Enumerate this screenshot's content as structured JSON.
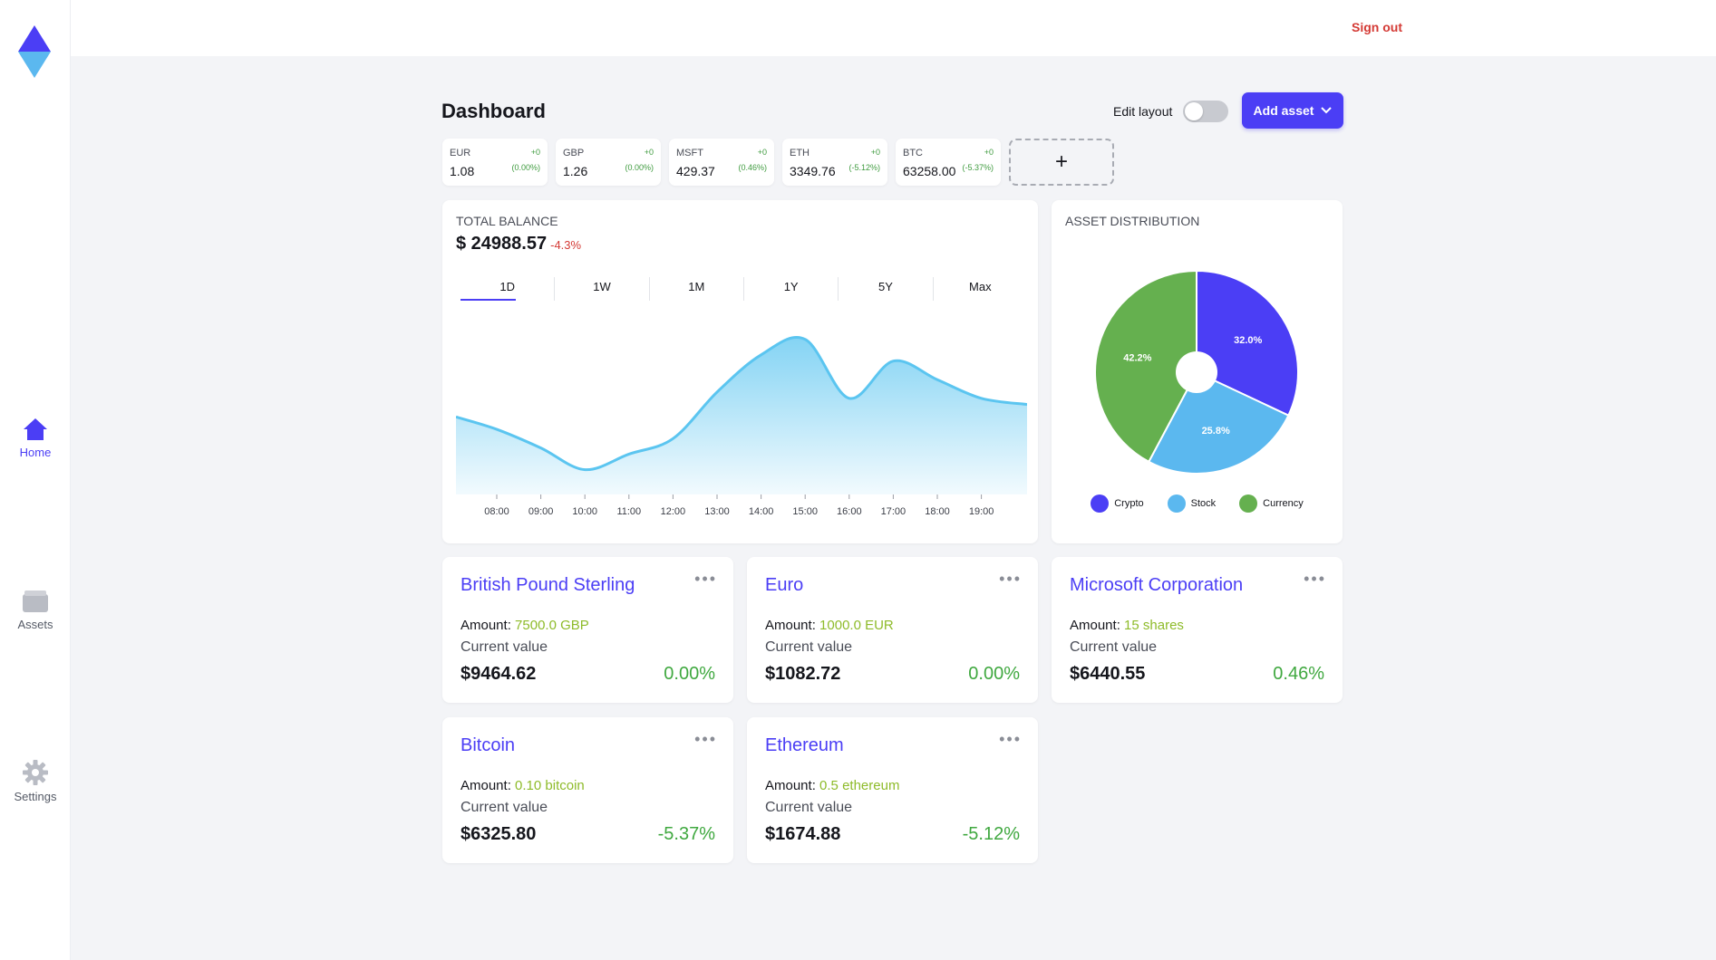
{
  "sidebar": {
    "items": [
      {
        "label": "Home",
        "icon": "home-icon",
        "active": true
      },
      {
        "label": "Assets",
        "icon": "wallet-icon",
        "active": false
      },
      {
        "label": "Settings",
        "icon": "gear-icon",
        "active": false
      }
    ]
  },
  "topbar": {
    "sign_out": "Sign out"
  },
  "header": {
    "title": "Dashboard",
    "edit_layout_label": "Edit layout",
    "edit_layout_on": false,
    "add_asset_label": "Add asset"
  },
  "tickers": [
    {
      "symbol": "EUR",
      "value": "1.08",
      "change": "+0",
      "percent": "(0.00%)"
    },
    {
      "symbol": "GBP",
      "value": "1.26",
      "change": "+0",
      "percent": "(0.00%)"
    },
    {
      "symbol": "MSFT",
      "value": "429.37",
      "change": "+0",
      "percent": "(0.46%)"
    },
    {
      "symbol": "ETH",
      "value": "3349.76",
      "change": "+0",
      "percent": "(-5.12%)"
    },
    {
      "symbol": "BTC",
      "value": "63258.00",
      "change": "+0",
      "percent": "(-5.37%)"
    }
  ],
  "add_ticker_label": "+",
  "balance": {
    "label": "TOTAL BALANCE",
    "amount": "$ 24988.57",
    "change": "-4.3%",
    "ranges": [
      "1D",
      "1W",
      "1M",
      "1Y",
      "5Y",
      "Max"
    ],
    "active_range": "1D"
  },
  "distribution": {
    "label": "ASSET DISTRIBUTION"
  },
  "assets": [
    {
      "name": "British Pound Sterling",
      "amount_label": "Amount:",
      "amount": "7500.0 GBP",
      "current_label": "Current value",
      "value": "$9464.62",
      "percent": "0.00%"
    },
    {
      "name": "Euro",
      "amount_label": "Amount:",
      "amount": "1000.0 EUR",
      "current_label": "Current value",
      "value": "$1082.72",
      "percent": "0.00%"
    },
    {
      "name": "Microsoft Corporation",
      "amount_label": "Amount:",
      "amount": "15 shares",
      "current_label": "Current value",
      "value": "$6440.55",
      "percent": "0.46%"
    },
    {
      "name": "Bitcoin",
      "amount_label": "Amount:",
      "amount": "0.10 bitcoin",
      "current_label": "Current value",
      "value": "$6325.80",
      "percent": "-5.37%"
    },
    {
      "name": "Ethereum",
      "amount_label": "Amount:",
      "amount": "0.5 ethereum",
      "current_label": "Current value",
      "value": "$1674.88",
      "percent": "-5.12%"
    }
  ],
  "colors": {
    "accent": "#4b3ef5",
    "crypto": "#4b3ef5",
    "stock": "#5bb8ef",
    "currency": "#65b04f",
    "positive": "#3fa83f",
    "negative": "#d43a35",
    "area": "#5bc5f0"
  },
  "chart_data": [
    {
      "type": "area",
      "x": [
        "08:00",
        "09:00",
        "10:00",
        "11:00",
        "12:00",
        "13:00",
        "14:00",
        "15:00",
        "16:00",
        "17:00",
        "18:00",
        "19:00"
      ],
      "series": [
        {
          "values": [
            24720,
            24690,
            24655,
            24680,
            24705,
            24780,
            24840,
            24865,
            24770,
            24830,
            24800,
            24770
          ]
        }
      ],
      "xlabel": "",
      "ylabel": ""
    },
    {
      "type": "pie",
      "categories": [
        "Crypto",
        "Stock",
        "Currency"
      ],
      "values": [
        32.0,
        25.8,
        42.2
      ],
      "labels": [
        "32.0%",
        "25.8%",
        "42.2%"
      ]
    }
  ]
}
